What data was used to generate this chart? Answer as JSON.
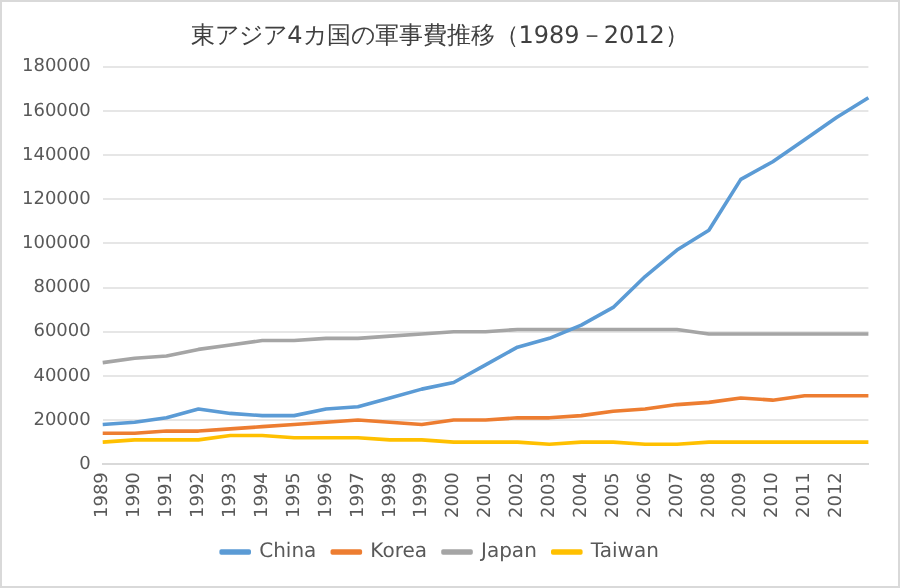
{
  "chart_data": {
    "type": "line",
    "title": "東アジア4カ国の軍事費推移（1989－2012）",
    "categories": [
      "1989",
      "1990",
      "1991",
      "1992",
      "1993",
      "1994",
      "1995",
      "1996",
      "1997",
      "1998",
      "1999",
      "2000",
      "2001",
      "2002",
      "2003",
      "2004",
      "2005",
      "2006",
      "2007",
      "2008",
      "2009",
      "2010",
      "2011",
      "2012",
      null
    ],
    "series": [
      {
        "name": "China",
        "color": "#5b9bd5",
        "values": [
          18000,
          19000,
          21000,
          25000,
          23000,
          22000,
          22000,
          25000,
          26000,
          30000,
          34000,
          37000,
          45000,
          53000,
          57000,
          63000,
          71000,
          85000,
          97000,
          106000,
          129000,
          137000,
          147000,
          157000,
          166000
        ]
      },
      {
        "name": "Korea",
        "color": "#ed7d31",
        "values": [
          14000,
          14000,
          15000,
          15000,
          16000,
          17000,
          18000,
          19000,
          20000,
          19000,
          18000,
          20000,
          20000,
          21000,
          21000,
          22000,
          24000,
          25000,
          27000,
          28000,
          30000,
          29000,
          31000,
          31000,
          31000
        ]
      },
      {
        "name": "Japan",
        "color": "#a5a5a5",
        "values": [
          46000,
          48000,
          49000,
          52000,
          54000,
          56000,
          56000,
          57000,
          57000,
          58000,
          59000,
          60000,
          60000,
          61000,
          61000,
          61000,
          61000,
          61000,
          61000,
          59000,
          59000,
          59000,
          59000,
          59000,
          59000
        ]
      },
      {
        "name": "Taiwan",
        "color": "#ffc000",
        "values": [
          10000,
          11000,
          11000,
          11000,
          13000,
          13000,
          12000,
          12000,
          12000,
          11000,
          11000,
          10000,
          10000,
          10000,
          9000,
          10000,
          10000,
          9000,
          9000,
          10000,
          10000,
          10000,
          10000,
          10000,
          10000
        ]
      }
    ],
    "ylim": [
      0,
      180000
    ],
    "yticks": [
      0,
      20000,
      40000,
      60000,
      80000,
      100000,
      120000,
      140000,
      160000,
      180000
    ],
    "grid": "y",
    "legend": "bottom",
    "marker": "none",
    "line_style": "solid"
  }
}
